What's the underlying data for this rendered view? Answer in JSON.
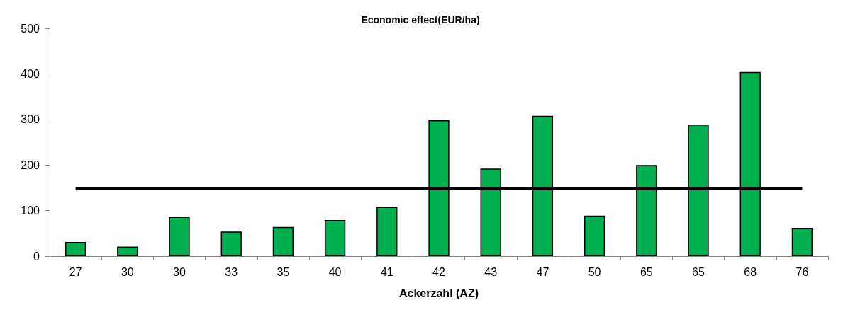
{
  "chart_data": {
    "type": "bar",
    "title": "Economic effect(EUR/ha)",
    "xlabel": "Ackerzahl (AZ)",
    "categories": [
      "27",
      "30",
      "30",
      "33",
      "35",
      "40",
      "41",
      "42",
      "43",
      "47",
      "50",
      "65",
      "65",
      "68",
      "76"
    ],
    "values": [
      31,
      21,
      86,
      54,
      64,
      79,
      108,
      298,
      192,
      308,
      89,
      200,
      289,
      404,
      62
    ],
    "color": "#00b050",
    "ylim": [
      0,
      500
    ],
    "yticks": [
      0,
      100,
      200,
      300,
      400,
      500
    ],
    "grid": false,
    "ref_lines": [
      {
        "axis": "y",
        "value": 148,
        "color": "#000000",
        "line_style": "solid"
      }
    ]
  }
}
